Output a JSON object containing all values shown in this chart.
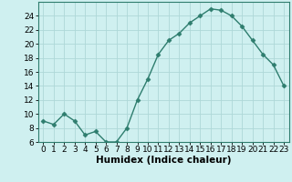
{
  "x": [
    0,
    1,
    2,
    3,
    4,
    5,
    6,
    7,
    8,
    9,
    10,
    11,
    12,
    13,
    14,
    15,
    16,
    17,
    18,
    19,
    20,
    21,
    22,
    23
  ],
  "y": [
    9.0,
    8.5,
    10.0,
    9.0,
    7.0,
    7.5,
    6.0,
    6.0,
    8.0,
    12.0,
    15.0,
    18.5,
    20.5,
    21.5,
    23.0,
    24.0,
    25.0,
    24.8,
    24.0,
    22.5,
    20.5,
    18.5,
    17.0,
    14.0
  ],
  "line_color": "#2e7d6e",
  "marker": "D",
  "markersize": 2.5,
  "linewidth": 1.0,
  "bg_color": "#cff0f0",
  "grid_color": "#aed8d8",
  "xlabel": "Humidex (Indice chaleur)",
  "xlim": [
    -0.5,
    23.5
  ],
  "ylim": [
    6,
    26
  ],
  "yticks": [
    6,
    8,
    10,
    12,
    14,
    16,
    18,
    20,
    22,
    24
  ],
  "xticks": [
    0,
    1,
    2,
    3,
    4,
    5,
    6,
    7,
    8,
    9,
    10,
    11,
    12,
    13,
    14,
    15,
    16,
    17,
    18,
    19,
    20,
    21,
    22,
    23
  ],
  "tick_fontsize": 6.5,
  "label_fontsize": 7.5
}
